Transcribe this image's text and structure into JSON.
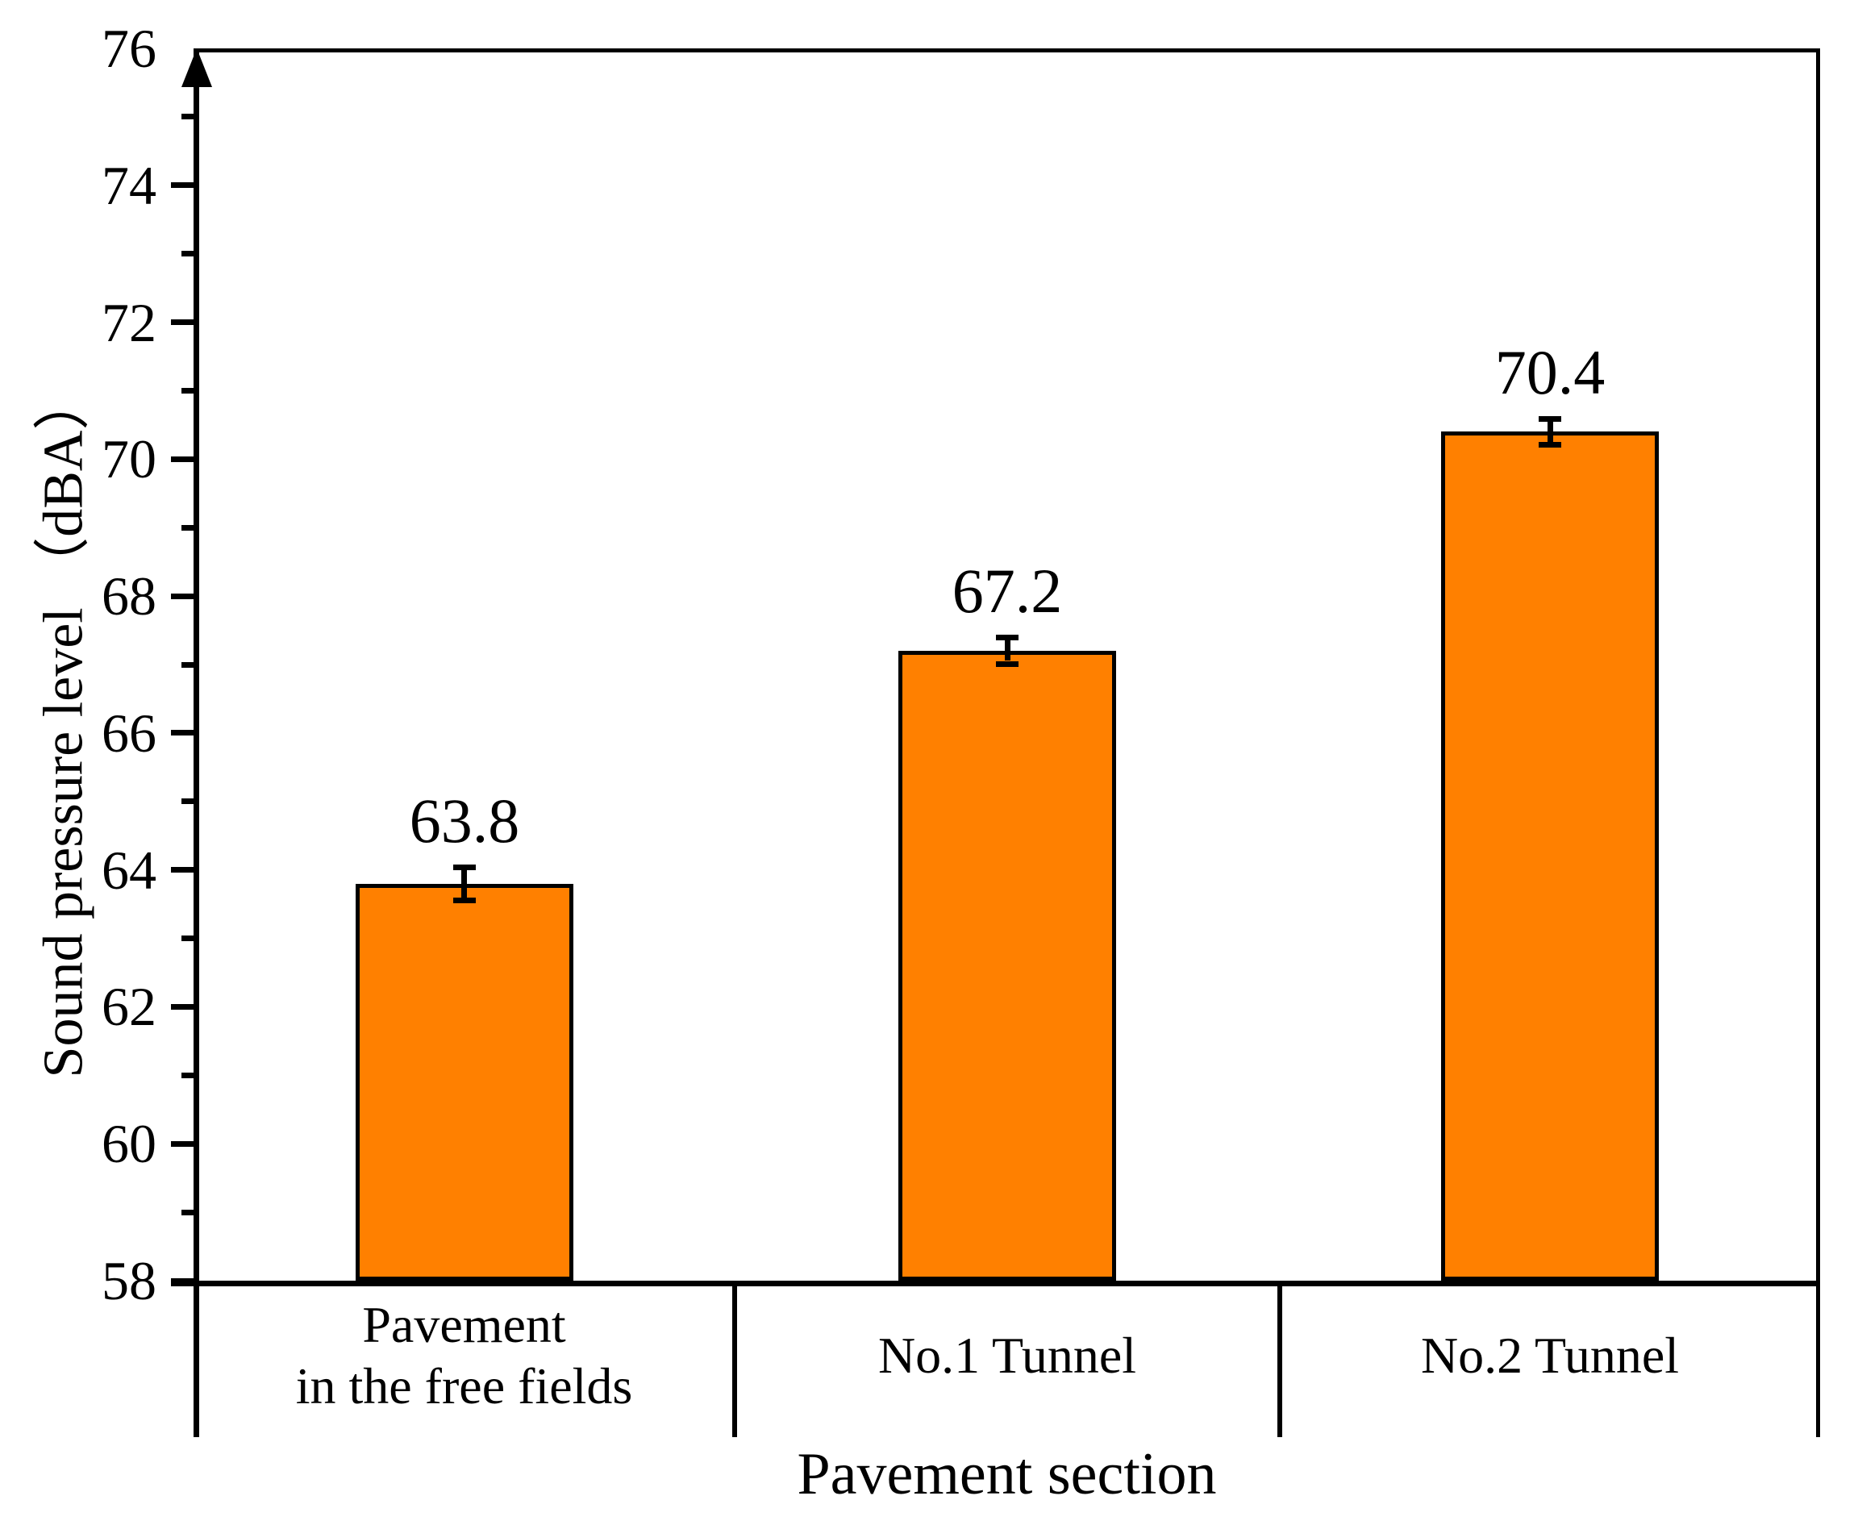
{
  "figure": {
    "y_axis_title": "Sound pressure level （dBA）",
    "x_axis_title": "Pavement section"
  },
  "chart_data": {
    "type": "bar",
    "categories": [
      "Pavement\nin the free fields",
      "No.1 Tunnel",
      "No.2 Tunnel"
    ],
    "values": [
      63.8,
      67.2,
      70.4
    ],
    "errors": [
      0.2,
      0.15,
      0.15
    ],
    "value_labels": [
      "63.8",
      "67.2",
      "70.4"
    ],
    "xlabel": "Pavement section",
    "ylabel": "Sound pressure level （dBA）",
    "ylim": [
      58,
      76
    ],
    "ytick_major_step": 2,
    "ytick_minor_step": 1,
    "ytick_labels": [
      "58",
      "60",
      "62",
      "64",
      "66",
      "68",
      "70",
      "72",
      "74",
      "76"
    ],
    "bar_color": "#FF8000",
    "bar_border_color": "#000000",
    "axis_color": "#000000",
    "grid": false,
    "legend": null
  }
}
